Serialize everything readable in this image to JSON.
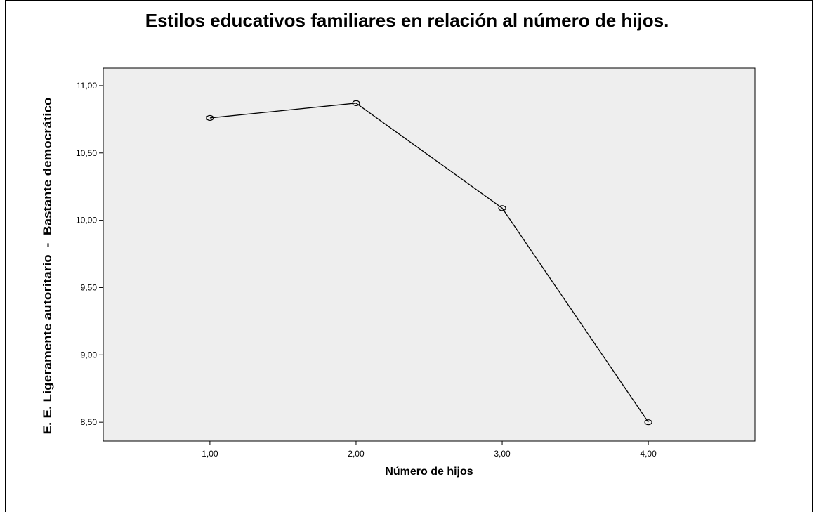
{
  "chart_data": {
    "type": "line",
    "title": "Estilos educativos familiares en relación al número de hijos.",
    "xlabel": "Número de hijos",
    "ylabel": "E. E. Ligeramente autoritario  -  Bastante democrático",
    "x": [
      1,
      2,
      3,
      4
    ],
    "x_tick_labels": [
      "1,00",
      "2,00",
      "3,00",
      "4,00"
    ],
    "y_tick_values": [
      8.5,
      9.0,
      9.5,
      10.0,
      10.5,
      11.0
    ],
    "y_tick_labels": [
      "8,50",
      "9,00",
      "9,50",
      "10,00",
      "10,50",
      "11,00"
    ],
    "series": [
      {
        "values": [
          10.76,
          10.87,
          10.09,
          8.5
        ]
      }
    ],
    "xlim": [
      0.27,
      4.73
    ],
    "ylim": [
      8.36,
      11.13
    ],
    "grid": false,
    "legend": "none",
    "plot_background": "#eeeeee",
    "line_color": "#000000"
  }
}
